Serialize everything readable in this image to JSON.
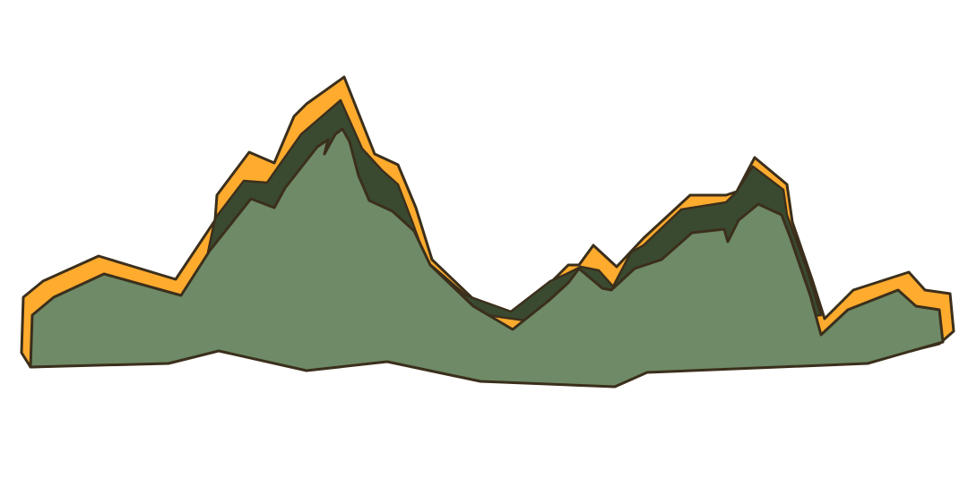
{
  "illustration": {
    "subject": "mountain-range",
    "colors": {
      "background": "#ffffff",
      "outline": "#3b2f1c",
      "rim": "#ffab2e",
      "shadow": "#3a4a31",
      "body": "#6e8a66"
    }
  }
}
